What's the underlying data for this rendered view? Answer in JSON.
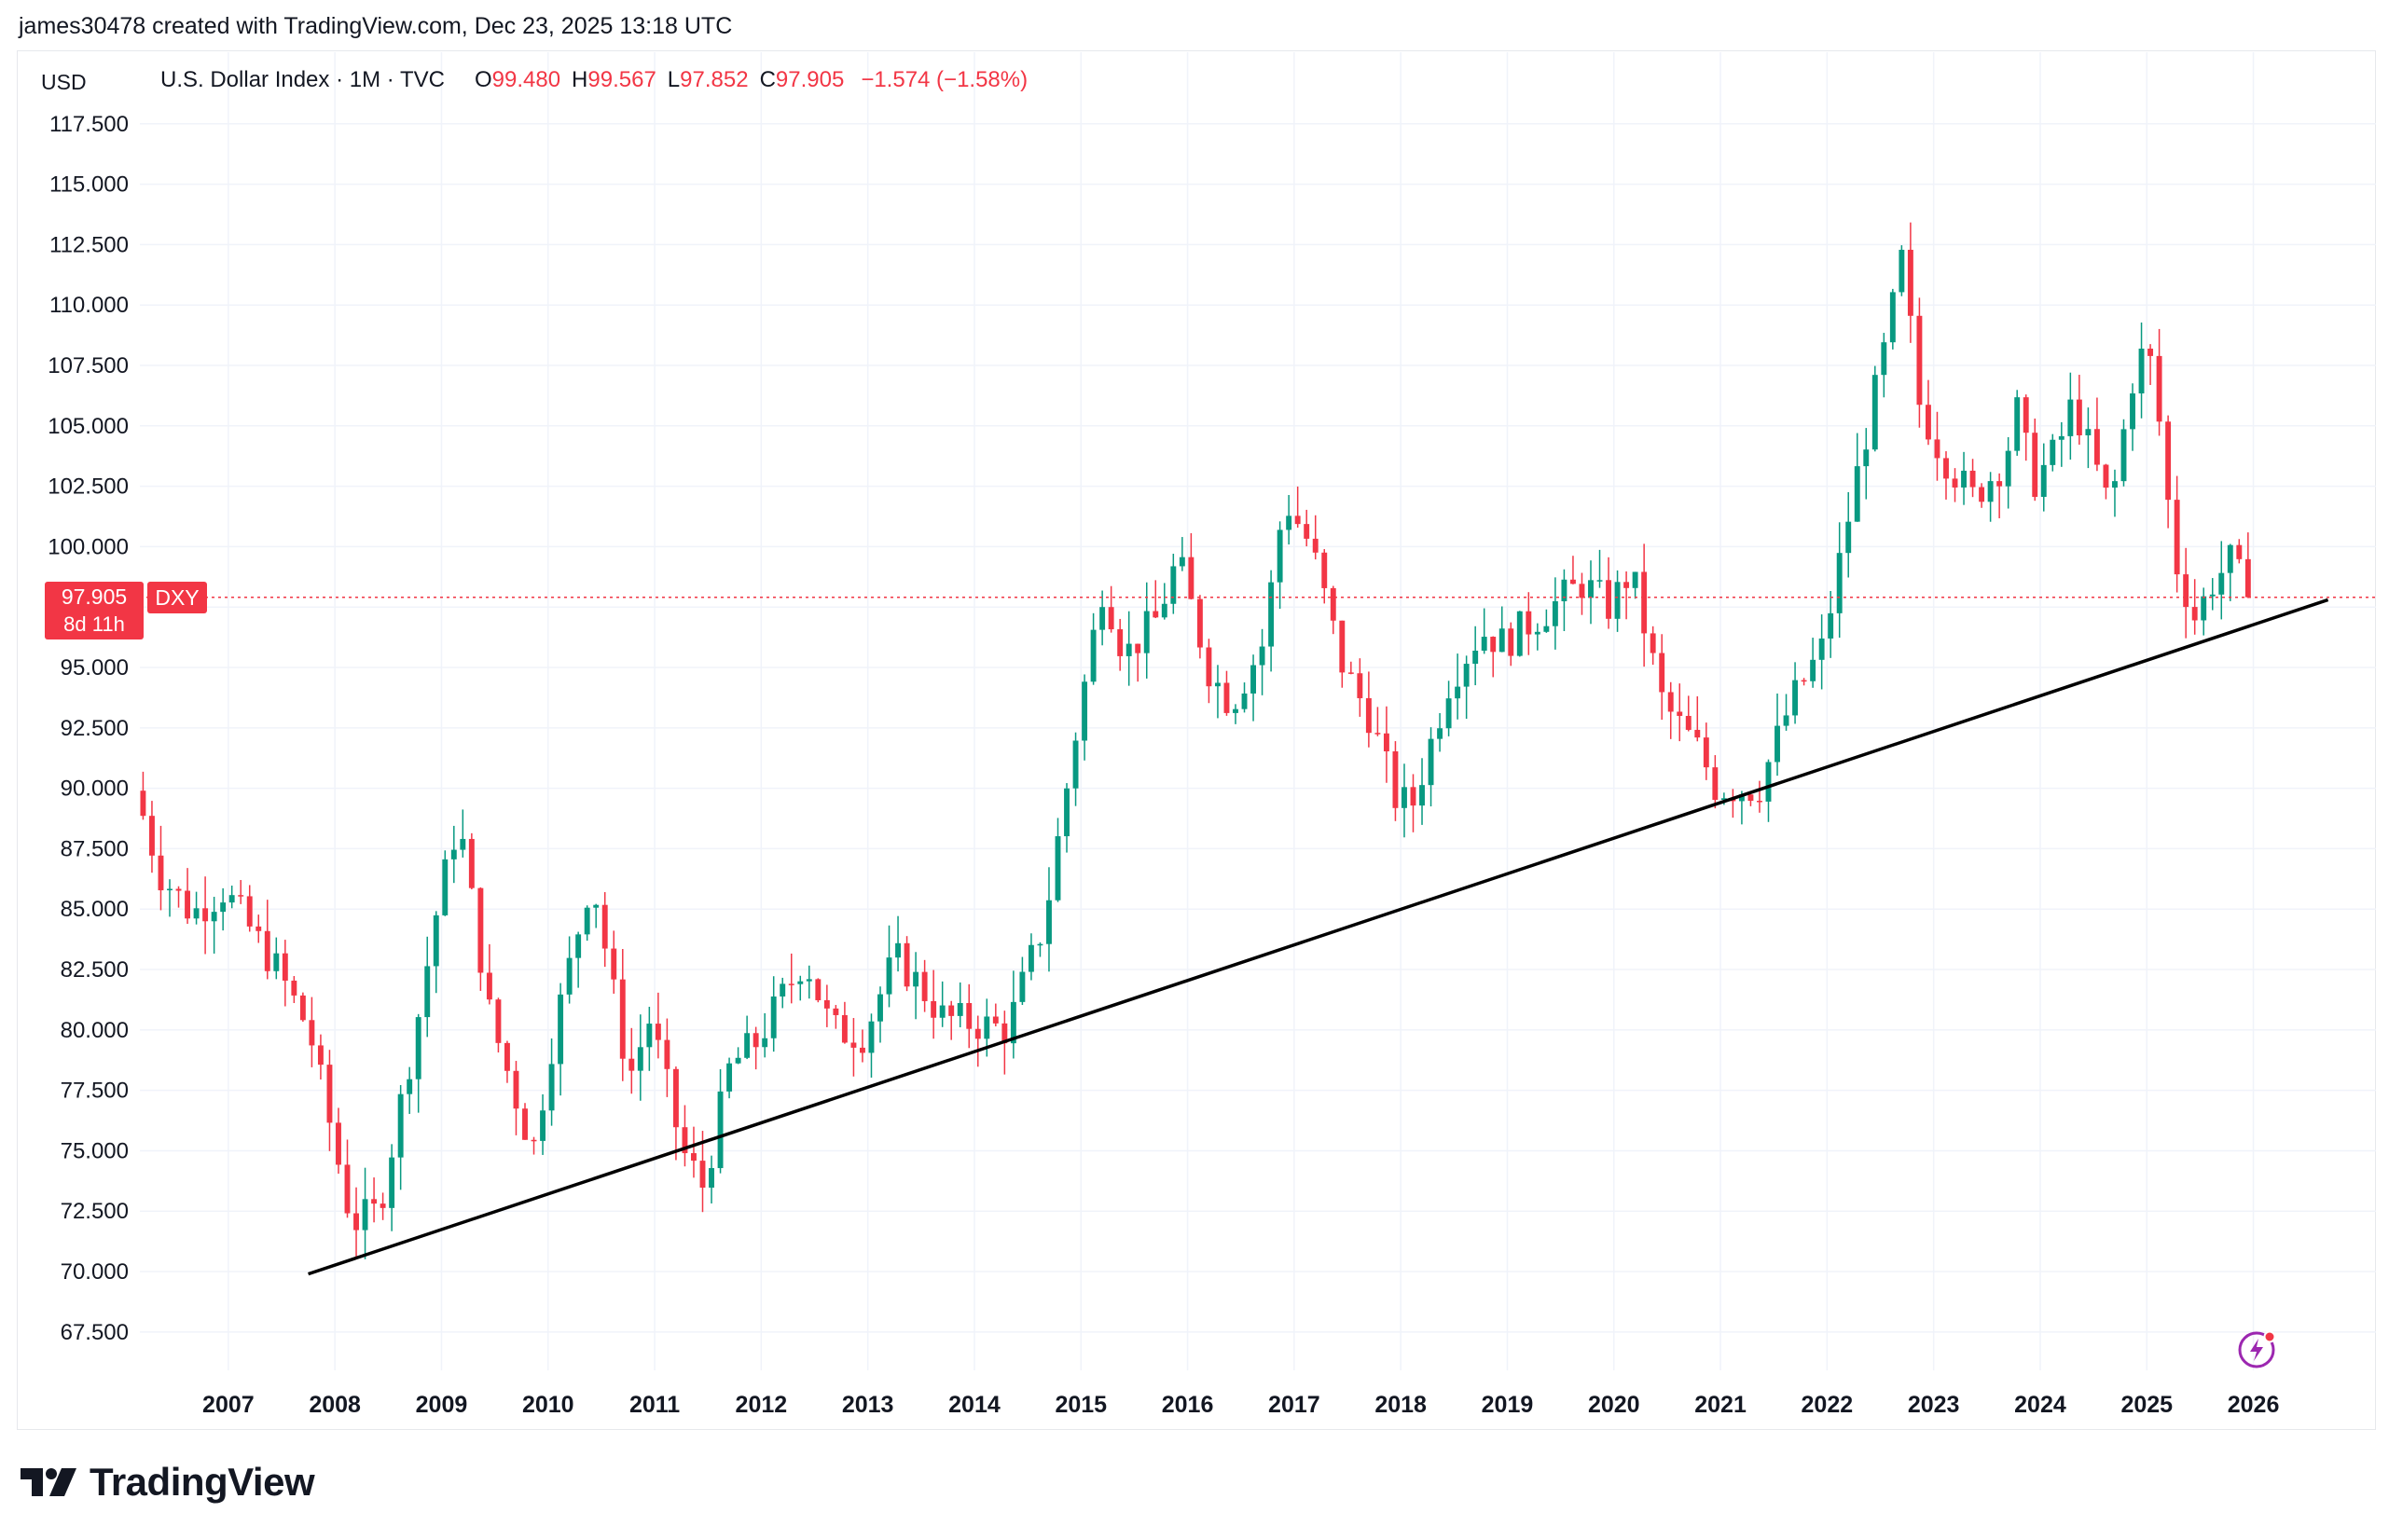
{
  "header": {
    "caption": "james30478 created with TradingView.com, Dec 23, 2025 13:18 UTC"
  },
  "toolbar": {
    "currency_label": "USD"
  },
  "legend": {
    "symbol": "U.S. Dollar Index · 1M · TVC",
    "open_label": "O",
    "open_value": "99.480",
    "high_label": "H",
    "high_value": "99.567",
    "low_label": "L",
    "low_value": "97.852",
    "close_label": "C",
    "close_value": "97.905",
    "change": "−1.574 (−1.58%)"
  },
  "price_tag": {
    "price": "97.905",
    "countdown": "8d 11h",
    "ticker": "DXY"
  },
  "brand": {
    "name": "TradingView"
  },
  "icons": {
    "logo": "tradingview-logo-icon",
    "flash": "lightning-icon"
  },
  "colors": {
    "up": "#089981",
    "down": "#f23645",
    "grid": "#f0f3fa",
    "trendline": "#000000",
    "price_line": "#f23645"
  },
  "chart_data": {
    "type": "candlestick",
    "symbol": "DXY",
    "title": "U.S. Dollar Index · 1M · TVC",
    "interval": "1M",
    "y_axis_side": "left",
    "ylim": [
      66.8,
      117.8
    ],
    "yticks": [
      67.5,
      70.0,
      72.5,
      75.0,
      77.5,
      80.0,
      82.5,
      85.0,
      87.5,
      90.0,
      92.5,
      95.0,
      97.5,
      100.0,
      102.5,
      105.0,
      107.5,
      110.0,
      112.5,
      115.0,
      117.5
    ],
    "ytick_labels": [
      "67.500",
      "70.000",
      "72.500",
      "75.000",
      "77.500",
      "80.000",
      "82.500",
      "85.000",
      "87.500",
      "90.000",
      "92.500",
      "95.000",
      "97.500",
      "100.000",
      "102.500",
      "105.000",
      "107.500",
      "110.000",
      "112.500",
      "115.000",
      "117.500"
    ],
    "xlim": [
      2006.17,
      2027.15
    ],
    "xticks": [
      2007,
      2008,
      2009,
      2010,
      2011,
      2012,
      2013,
      2014,
      2015,
      2016,
      2017,
      2018,
      2019,
      2020,
      2021,
      2022,
      2023,
      2024,
      2025,
      2026
    ],
    "xtick_labels": [
      "2007",
      "2008",
      "2009",
      "2010",
      "2011",
      "2012",
      "2013",
      "2014",
      "2015",
      "2016",
      "2017",
      "2018",
      "2019",
      "2020",
      "2021",
      "2022",
      "2023",
      "2024",
      "2025",
      "2026"
    ],
    "anchors": [
      [
        2006.2,
        89.5
      ],
      [
        2006.4,
        86.5
      ],
      [
        2006.7,
        84.8
      ],
      [
        2007.0,
        85.8
      ],
      [
        2007.5,
        82.5
      ],
      [
        2007.8,
        80.0
      ],
      [
        2008.2,
        72.0
      ],
      [
        2008.45,
        72.5
      ],
      [
        2008.8,
        80.0
      ],
      [
        2009.0,
        85.0
      ],
      [
        2009.2,
        88.8
      ],
      [
        2009.5,
        80.5
      ],
      [
        2009.9,
        75.0
      ],
      [
        2010.1,
        80.0
      ],
      [
        2010.45,
        86.5
      ],
      [
        2010.8,
        78.0
      ],
      [
        2011.0,
        80.5
      ],
      [
        2011.3,
        75.0
      ],
      [
        2011.5,
        73.5
      ],
      [
        2011.75,
        78.5
      ],
      [
        2012.0,
        79.5
      ],
      [
        2012.45,
        83.0
      ],
      [
        2012.7,
        80.0
      ],
      [
        2013.0,
        79.8
      ],
      [
        2013.3,
        83.0
      ],
      [
        2013.5,
        82.0
      ],
      [
        2013.75,
        80.5
      ],
      [
        2014.0,
        80.3
      ],
      [
        2014.35,
        80.0
      ],
      [
        2014.7,
        84.5
      ],
      [
        2015.0,
        92.5
      ],
      [
        2015.25,
        98.5
      ],
      [
        2015.45,
        95.5
      ],
      [
        2015.75,
        97.0
      ],
      [
        2015.95,
        99.5
      ],
      [
        2016.25,
        94.8
      ],
      [
        2016.45,
        93.5
      ],
      [
        2016.75,
        96.0
      ],
      [
        2016.95,
        102.0
      ],
      [
        2017.2,
        100.0
      ],
      [
        2017.5,
        95.0
      ],
      [
        2017.75,
        93.0
      ],
      [
        2018.0,
        89.5
      ],
      [
        2018.15,
        89.3
      ],
      [
        2018.5,
        94.5
      ],
      [
        2018.8,
        96.5
      ],
      [
        2019.0,
        96.0
      ],
      [
        2019.3,
        97.0
      ],
      [
        2019.75,
        98.5
      ],
      [
        2020.0,
        97.5
      ],
      [
        2020.2,
        99.0
      ],
      [
        2020.5,
        93.5
      ],
      [
        2020.85,
        91.5
      ],
      [
        2021.0,
        90.0
      ],
      [
        2021.4,
        90.0
      ],
      [
        2021.7,
        93.5
      ],
      [
        2022.0,
        95.8
      ],
      [
        2022.3,
        102.5
      ],
      [
        2022.6,
        108.5
      ],
      [
        2022.75,
        112.0
      ],
      [
        2022.9,
        106.0
      ],
      [
        2023.1,
        104.0
      ],
      [
        2023.4,
        102.0
      ],
      [
        2023.7,
        103.5
      ],
      [
        2023.85,
        106.0
      ],
      [
        2023.95,
        102.5
      ],
      [
        2024.2,
        104.0
      ],
      [
        2024.35,
        106.0
      ],
      [
        2024.7,
        101.5
      ],
      [
        2024.95,
        108.0
      ],
      [
        2025.1,
        107.5
      ],
      [
        2025.3,
        99.5
      ],
      [
        2025.5,
        97.0
      ],
      [
        2025.65,
        98.5
      ],
      [
        2025.85,
        99.5
      ],
      [
        2025.97,
        97.9
      ]
    ],
    "last_price": 97.905,
    "trendline": {
      "start": [
        2007.75,
        69.9
      ],
      "end": [
        2026.7,
        97.8
      ]
    }
  }
}
